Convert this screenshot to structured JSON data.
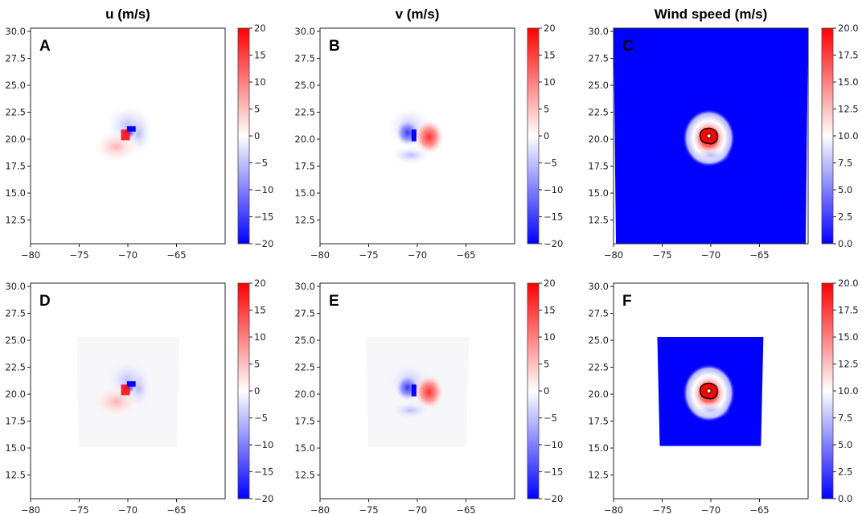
{
  "chart_data": {
    "type": "heatmap",
    "column_titles": [
      "u (m/s)",
      "v (m/s)",
      "Wind speed (m/s)"
    ],
    "xlim": [
      -80,
      -60
    ],
    "ylim": [
      10.3,
      30.3
    ],
    "xticks": [
      "-80",
      "-75",
      "-70",
      "-65"
    ],
    "yticks": [
      "30.0",
      "27.5",
      "25.0",
      "22.5",
      "20.0",
      "17.5",
      "15.0",
      "12.5"
    ],
    "colormap": "bwr",
    "colors": {
      "low": "#0000ff",
      "mid": "#ffffff",
      "high": "#ff0000",
      "contour": "#000000"
    },
    "panels": [
      {
        "label": "A",
        "field": "u",
        "row": 0,
        "col": 0,
        "clim": [
          -20,
          20
        ],
        "colorbar_ticks": [
          "20",
          "15",
          "10",
          "5",
          "0",
          "-5",
          "-10",
          "-15",
          "-20"
        ],
        "domain": null
      },
      {
        "label": "B",
        "field": "v",
        "row": 0,
        "col": 1,
        "clim": [
          -20,
          20
        ],
        "colorbar_ticks": [
          "20",
          "15",
          "10",
          "5",
          "0",
          "-5",
          "-10",
          "-15",
          "-20"
        ],
        "domain": null
      },
      {
        "label": "C",
        "field": "speed",
        "row": 0,
        "col": 2,
        "clim": [
          0,
          20
        ],
        "colorbar_ticks": [
          "20.0",
          "17.5",
          "15.0",
          "12.5",
          "10.0",
          "7.5",
          "5.0",
          "2.5",
          "0.0"
        ],
        "domain": [
          -80,
          -60,
          10.3,
          30.3
        ]
      },
      {
        "label": "D",
        "field": "u",
        "row": 1,
        "col": 0,
        "clim": [
          -20,
          20
        ],
        "colorbar_ticks": [
          "20",
          "15",
          "10",
          "5",
          "0",
          "-5",
          "-10",
          "-15",
          "-20"
        ],
        "domain": [
          -75.3,
          -64.7,
          15.1,
          25.3
        ]
      },
      {
        "label": "E",
        "field": "v",
        "row": 1,
        "col": 1,
        "clim": [
          -20,
          20
        ],
        "colorbar_ticks": [
          "20",
          "15",
          "10",
          "5",
          "0",
          "-5",
          "-10",
          "-15",
          "-20"
        ],
        "domain": [
          -75.3,
          -64.7,
          15.1,
          25.3
        ]
      },
      {
        "label": "F",
        "field": "speed",
        "row": 1,
        "col": 2,
        "clim": [
          0,
          20
        ],
        "colorbar_ticks": [
          "20.0",
          "17.5",
          "15.0",
          "12.5",
          "10.0",
          "7.5",
          "5.0",
          "2.5",
          "0.0"
        ],
        "domain": [
          -75.5,
          -64.6,
          15.2,
          25.3
        ]
      }
    ],
    "vortex_center": [
      -70.2,
      20.3
    ]
  }
}
